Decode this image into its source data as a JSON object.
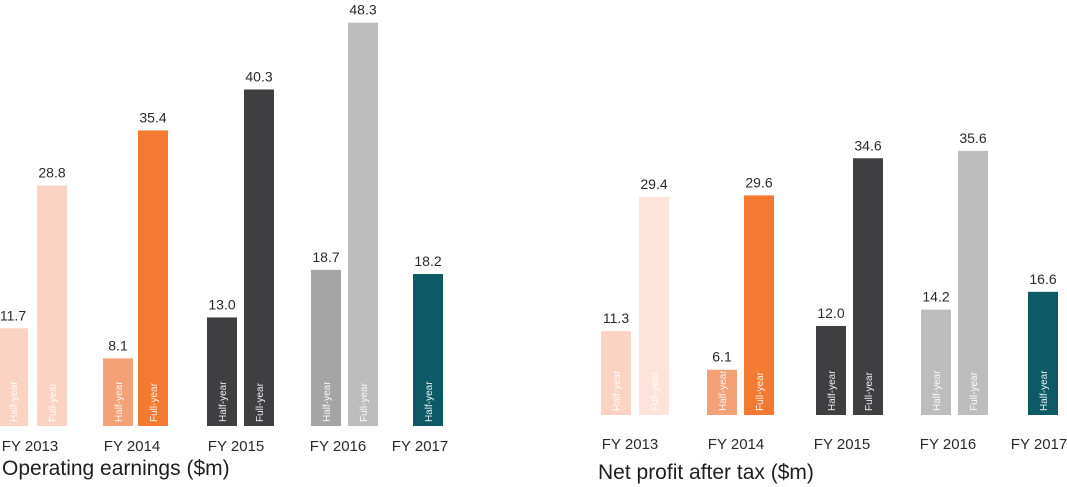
{
  "chart_data": [
    {
      "type": "bar",
      "title": "Operating earnings ($m)",
      "categories": [
        "FY 2013",
        "FY 2014",
        "FY 2015",
        "FY 2016",
        "FY 2017"
      ],
      "series": [
        {
          "name": "Half-year",
          "values": [
            11.7,
            8.1,
            13.0,
            18.7,
            18.2
          ]
        },
        {
          "name": "Full-year",
          "values": [
            28.8,
            35.4,
            40.3,
            48.3,
            null
          ]
        }
      ],
      "value_labels": {
        "half": [
          "11.7",
          "8.1",
          "13.0",
          "18.7",
          "18.2"
        ],
        "full": [
          "28.8",
          "35.4",
          "40.3",
          "48.3",
          null
        ]
      },
      "ylim": [
        0,
        50
      ],
      "grid": false,
      "legend": "none",
      "colors": {
        "FY 2013": {
          "half": "#fbd3c3",
          "full": "#fbd3c3"
        },
        "FY 2014": {
          "half": "#f4a178",
          "full": "#f37a30"
        },
        "FY 2015": {
          "half": "#3f3f42",
          "full": "#3f3f42"
        },
        "FY 2016": {
          "half": "#a5a5a5",
          "full": "#bdbdbd"
        },
        "FY 2017": {
          "half": "#0d5a66",
          "full": null
        }
      }
    },
    {
      "type": "bar",
      "title": "Net profit after tax ($m)",
      "categories": [
        "FY 2013",
        "FY 2014",
        "FY 2015",
        "FY 2016",
        "FY 2017"
      ],
      "series": [
        {
          "name": "Half-year",
          "values": [
            11.3,
            6.1,
            12.0,
            14.2,
            16.6
          ]
        },
        {
          "name": "Full-year",
          "values": [
            29.4,
            29.6,
            34.6,
            35.6,
            null
          ]
        }
      ],
      "value_labels": {
        "half": [
          "11.3",
          "6.1",
          "12.0",
          "14.2",
          "16.6"
        ],
        "full": [
          "29.4",
          "29.6",
          "34.6",
          "35.6",
          null
        ]
      },
      "ylim": [
        0,
        50
      ],
      "grid": false,
      "legend": "none",
      "colors": {
        "FY 2013": {
          "half": "#fbd3c3",
          "full": "#fde3d9"
        },
        "FY 2014": {
          "half": "#f4a178",
          "full": "#f37a30"
        },
        "FY 2015": {
          "half": "#3f3f42",
          "full": "#3f3f42"
        },
        "FY 2016": {
          "half": "#bdbdbd",
          "full": "#bdbdbd"
        },
        "FY 2017": {
          "half": "#0d5a66",
          "full": null
        }
      }
    }
  ],
  "bar_labels": {
    "half": "Half-year",
    "full": "Full-year"
  }
}
